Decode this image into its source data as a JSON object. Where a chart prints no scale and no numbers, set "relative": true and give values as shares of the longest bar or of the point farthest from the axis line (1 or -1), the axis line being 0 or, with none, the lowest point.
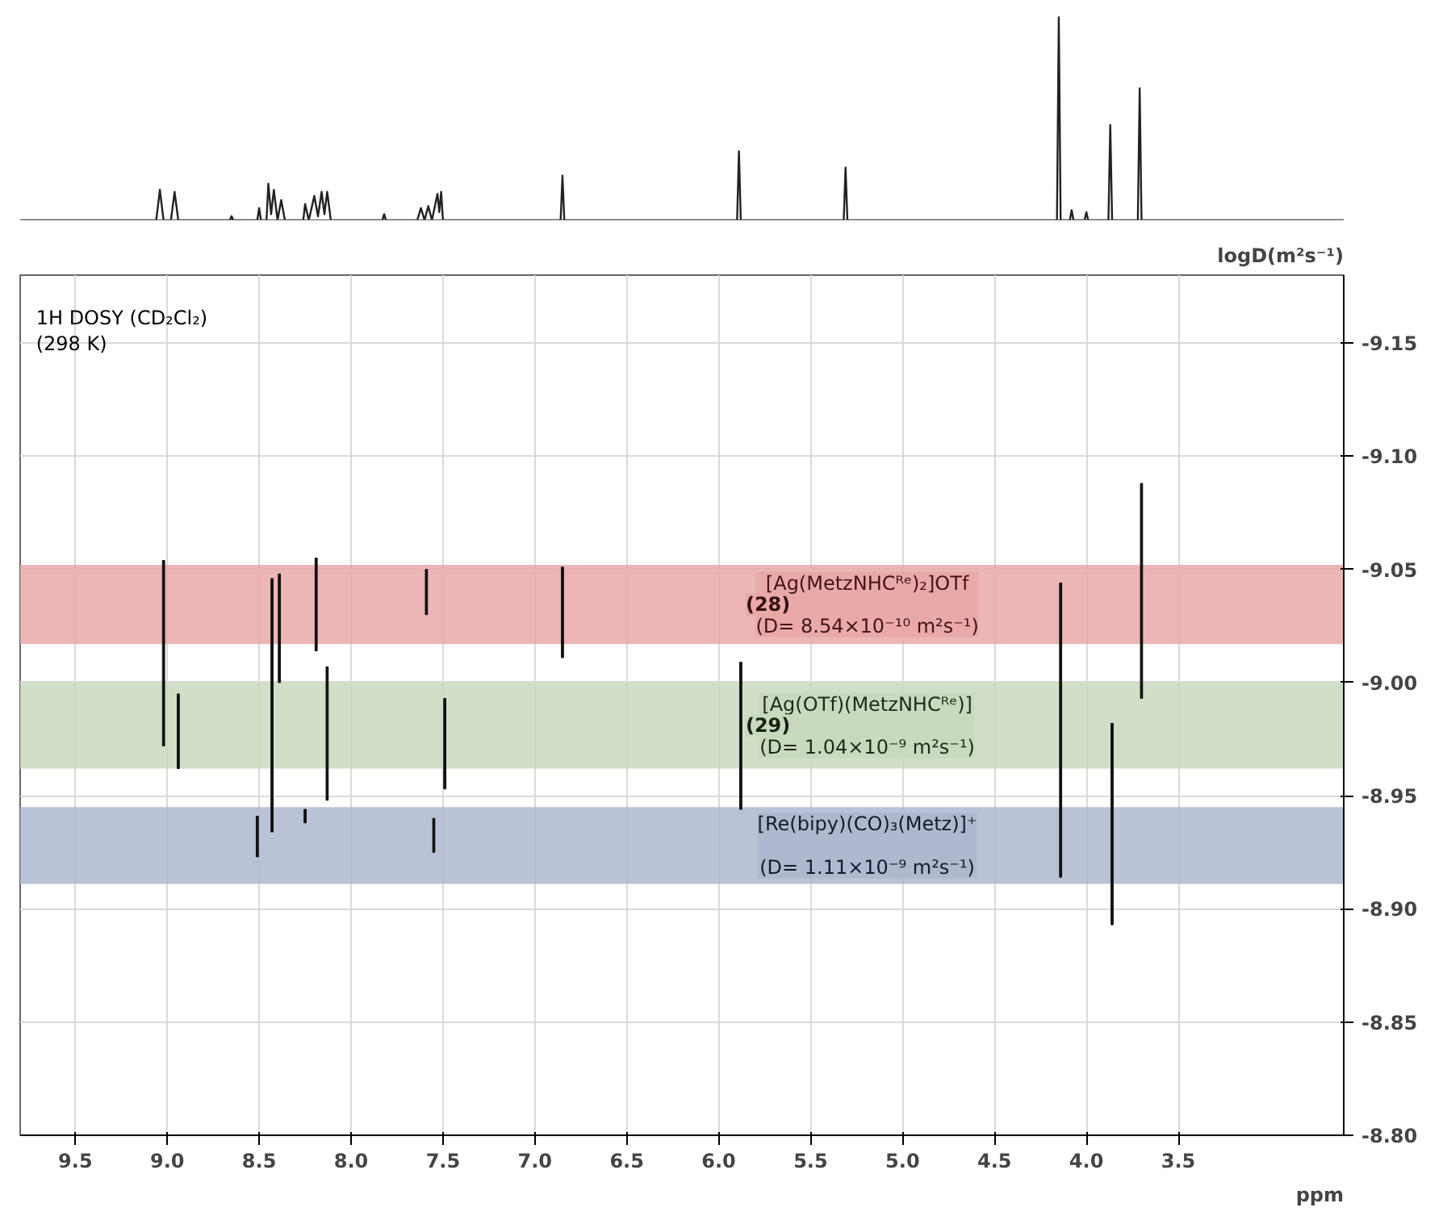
{
  "chart_data": [
    {
      "type": "line",
      "relative": true,
      "xlim": [
        9.8,
        2.6
      ],
      "tick_labels": false,
      "marker": "none",
      "line_style": "solid",
      "series": [
        {
          "color": "#222222",
          "x": [
            9.8,
            9.06,
            9.04,
            9.02,
            8.98,
            8.96,
            8.94,
            8.66,
            8.65,
            8.64,
            8.51,
            8.5,
            8.49,
            8.46,
            8.45,
            8.435,
            8.42,
            8.4,
            8.38,
            8.36,
            8.26,
            8.25,
            8.23,
            8.2,
            8.18,
            8.16,
            8.145,
            8.13,
            8.11,
            7.83,
            7.82,
            7.81,
            7.64,
            7.62,
            7.6,
            7.58,
            7.56,
            7.53,
            7.52,
            7.51,
            7.5,
            7.48,
            6.86,
            6.85,
            6.84,
            5.9,
            5.89,
            5.88,
            5.32,
            5.31,
            5.3,
            4.16,
            4.15,
            4.14,
            4.09,
            4.08,
            4.07,
            4.01,
            4.0,
            3.99,
            3.88,
            3.87,
            3.86,
            3.72,
            3.71,
            3.7,
            2.6
          ],
          "values": [
            0,
            0,
            0.15,
            0,
            0,
            0.14,
            0,
            0,
            0.02,
            0,
            0,
            0.06,
            0,
            0,
            0.18,
            0.03,
            0.15,
            0,
            0.1,
            0,
            0,
            0.08,
            0,
            0.12,
            0.02,
            0.14,
            0.03,
            0.14,
            0,
            0,
            0.03,
            0,
            0,
            0.06,
            0,
            0.07,
            0,
            0.13,
            0.04,
            0.14,
            0,
            0,
            0,
            0.22,
            0,
            0,
            0.34,
            0,
            0,
            0.26,
            0,
            0,
            1,
            0,
            0,
            0.05,
            0,
            0,
            0.04,
            0,
            0,
            0.47,
            0,
            0,
            0.65,
            0,
            0
          ]
        }
      ]
    },
    {
      "type": "bar",
      "ylabel": "logD(m²s⁻¹)",
      "xlabel": "ppm",
      "xlim": [
        9.8,
        2.6
      ],
      "ylim": [
        -8.8,
        -9.18
      ],
      "xticks": [
        9.5,
        {
          "value": 9,
          "label": "9.0"
        },
        8.5,
        {
          "value": 8,
          "label": "8.0"
        },
        7.5,
        {
          "value": 7,
          "label": "7.0"
        },
        6.5,
        {
          "value": 6,
          "label": "6.0"
        },
        5.5,
        {
          "value": 5,
          "label": "5.0"
        },
        4.5,
        {
          "value": 4,
          "label": "4.0"
        },
        3.5
      ],
      "yticks": [
        {
          "value": -9.15,
          "label": "-9.15"
        },
        {
          "value": -9.1,
          "label": "-9.10"
        },
        {
          "value": -9.05,
          "label": "-9.05"
        },
        {
          "value": -9.0,
          "label": "-9.00"
        },
        {
          "value": -8.95,
          "label": "-8.95"
        },
        {
          "value": -8.9,
          "label": "-8.90"
        },
        {
          "value": -8.85,
          "label": "-8.85"
        },
        {
          "value": -8.8,
          "label": "-8.80"
        }
      ],
      "grid": true,
      "x": [
        9.02,
        8.94,
        8.51,
        8.43,
        8.39,
        8.25,
        8.19,
        8.13,
        7.59,
        7.55,
        7.49,
        6.85,
        5.88,
        4.14,
        3.86,
        3.7
      ],
      "base": [
        -9.054,
        -8.995,
        -8.941,
        -9.046,
        -9.048,
        -8.944,
        -9.055,
        -9.007,
        -9.05,
        -8.94,
        -8.993,
        -9.051,
        -9.009,
        -9.044,
        -8.982,
        -9.088
      ],
      "values": [
        0.082,
        0.033,
        0.018,
        0.112,
        0.048,
        0.006,
        0.041,
        0.059,
        0.02,
        0.015,
        0.04,
        0.04,
        0.065,
        0.13,
        0.089,
        0.095
      ],
      "color": "#111111",
      "bands": [
        {
          "axis": "y",
          "from": -9.052,
          "to": -9.017,
          "color": "#e9a9a9",
          "label": "[Ag(MetzNHCᴿᵉ)₂]OTf\n(D= 8.54×10⁻¹⁰ m²s⁻¹)"
        },
        {
          "axis": "y",
          "from": -9.0,
          "to": -8.962,
          "color": "#c9d9bd",
          "label": "[Ag(OTf)(MetzNHCᴿᵉ)]\n(D= 1.04×10⁻⁹ m²s⁻¹)"
        },
        {
          "axis": "y",
          "from": -8.945,
          "to": -8.911,
          "color": "#aeb8cf",
          "label": "[Re(bipy)(CO)₃(Metz)]⁺\n(D= 1.11×10⁻⁹ m²s⁻¹)"
        }
      ],
      "annotations": [
        "1H DOSY (CD₂Cl₂)\n(298 K)",
        "(28)",
        "(29)"
      ]
    }
  ]
}
